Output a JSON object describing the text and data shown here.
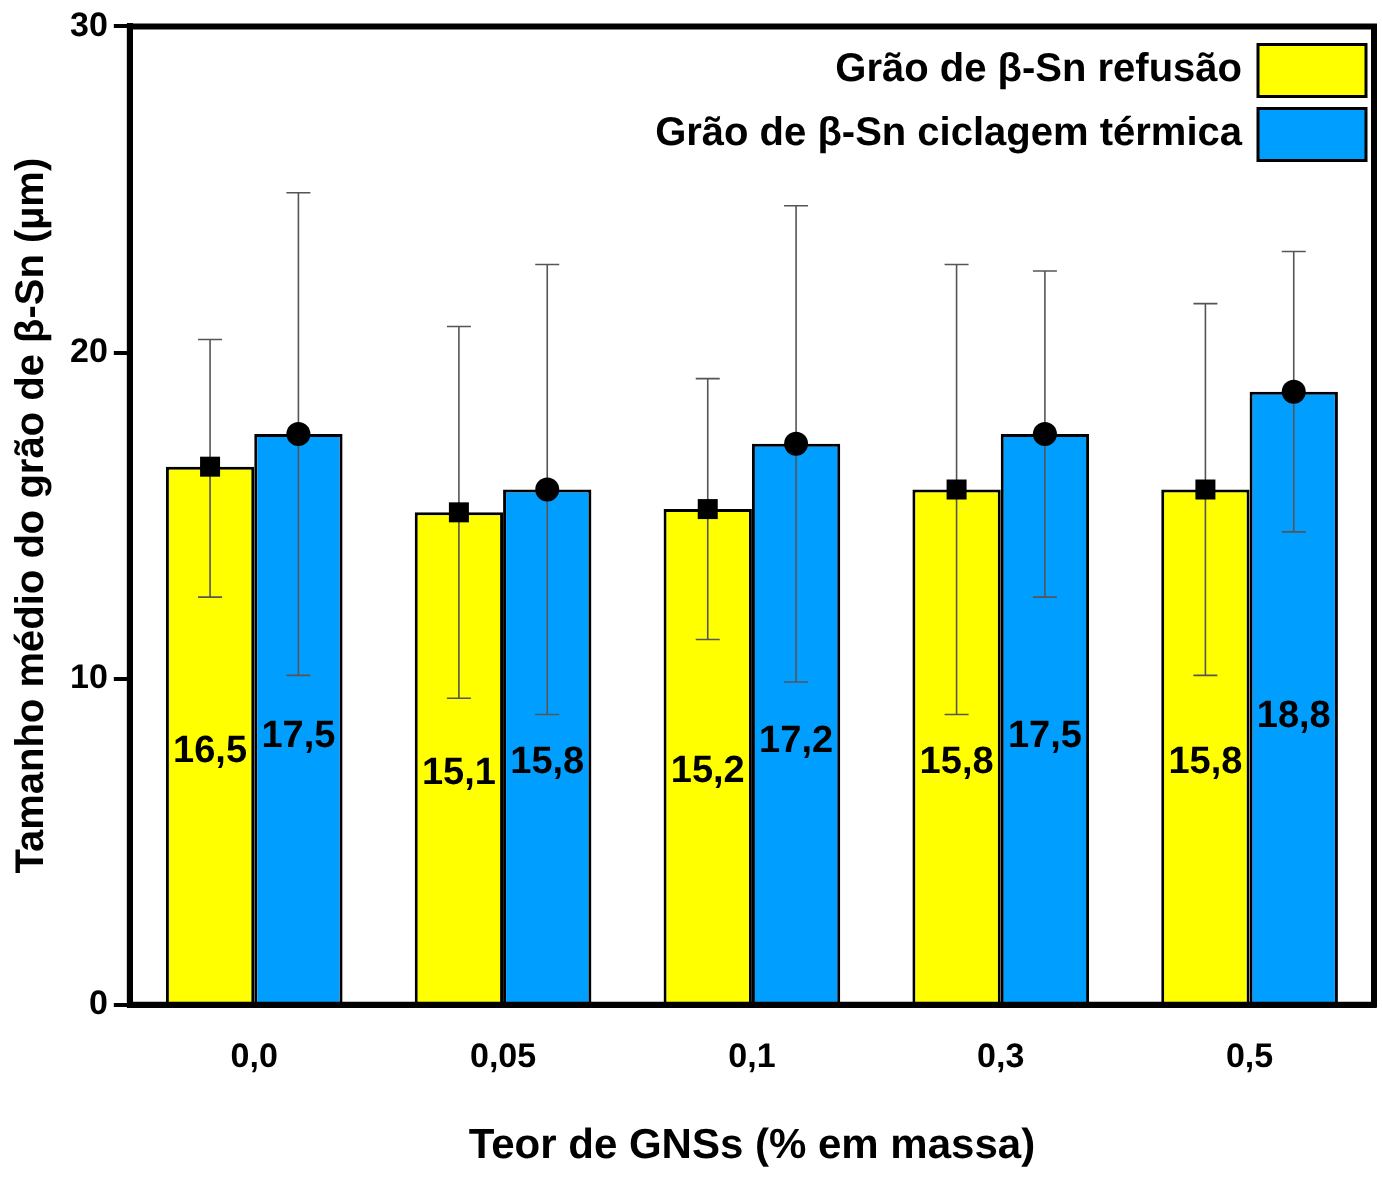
{
  "chart_data": {
    "type": "bar",
    "xlabel": "Teor de GNSs (% em massa)",
    "ylabel": "Tamanho médio do grão de β-Sn (µm)",
    "categories": [
      "0,0",
      "0,05",
      "0,1",
      "0,3",
      "0,5"
    ],
    "series": [
      {
        "name": "Grão de β-Sn refusão",
        "color": "#ffff00",
        "values": [
          16.5,
          15.1,
          15.2,
          15.8,
          15.8
        ],
        "errors": [
          [
            12.5,
            20.4
          ],
          [
            9.4,
            20.8
          ],
          [
            11.2,
            19.2
          ],
          [
            8.9,
            22.7
          ],
          [
            10.1,
            21.5
          ]
        ],
        "value_labels": [
          "16,5",
          "15,1",
          "15,2",
          "15,8",
          "15,8"
        ]
      },
      {
        "name": "Grão de β-Sn ciclagem térmica",
        "color": "#009fff",
        "values": [
          17.5,
          15.8,
          17.2,
          17.5,
          18.8
        ],
        "errors": [
          [
            10.1,
            24.9
          ],
          [
            8.9,
            22.7
          ],
          [
            9.9,
            24.5
          ],
          [
            12.5,
            22.5
          ],
          [
            14.5,
            23.1
          ]
        ],
        "value_labels": [
          "17,5",
          "15,8",
          "17,2",
          "17,5",
          "18,8"
        ]
      },
      {
        "type": "scatter",
        "color": "#000000",
        "marker": "square",
        "x": [
          "0,0",
          "0,05",
          "0,1",
          "0,3",
          "0,5"
        ],
        "values": [
          16.5,
          15.1,
          15.2,
          15.8,
          15.8
        ]
      },
      {
        "type": "scatter",
        "color": "#000000",
        "marker": "circle",
        "x": [
          "0,0",
          "0,05",
          "0,1",
          "0,3",
          "0,5"
        ],
        "values": [
          17.5,
          15.8,
          17.2,
          17.5,
          18.8
        ]
      }
    ],
    "ylim": [
      0,
      30
    ],
    "yticks": [
      0,
      10,
      20,
      30
    ],
    "grid": false,
    "legend": "top right"
  }
}
